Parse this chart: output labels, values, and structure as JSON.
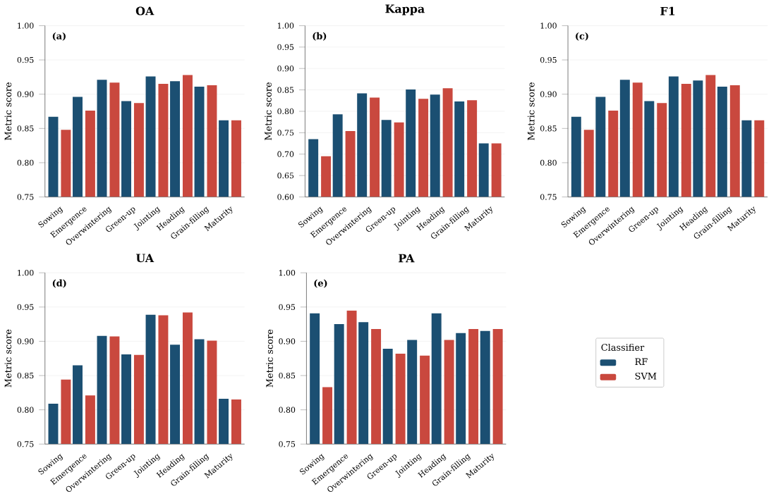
{
  "chart_data": [
    {
      "type": "bar",
      "title": "OA",
      "ylabel": "Metric score",
      "annotations": [
        "(a)"
      ],
      "categories": [
        "Sowing",
        "Emergence",
        "Overwintering",
        "Green-up",
        "Jointing",
        "Heading",
        "Grain-filling",
        "Maturity"
      ],
      "ylim": [
        0.75,
        1.0
      ],
      "yticks": [
        0.75,
        {
          "value": 0.8,
          "label": "0.80"
        },
        0.85,
        {
          "value": 0.9,
          "label": "0.90"
        },
        0.95,
        {
          "value": 1.0,
          "label": "1.00"
        }
      ],
      "grid": "y",
      "series": [
        {
          "color": "#1b4f72",
          "values": [
            0.867,
            0.896,
            0.921,
            0.89,
            0.926,
            0.919,
            0.911,
            0.862
          ]
        },
        {
          "color": "#c9483e",
          "values": [
            0.848,
            0.876,
            0.917,
            0.887,
            0.915,
            0.928,
            0.913,
            0.862
          ]
        }
      ]
    },
    {
      "type": "bar",
      "title": "Kappa",
      "ylabel": "Metric score",
      "annotations": [
        "(b)"
      ],
      "categories": [
        "Sowing",
        "Emergence",
        "Overwintering",
        "Green-up",
        "Jointing",
        "Heading",
        "Grain-filling",
        "Maturity"
      ],
      "ylim": [
        0.6,
        1.0
      ],
      "yticks": [
        {
          "value": 0.6,
          "label": "0.60"
        },
        0.65,
        {
          "value": 0.7,
          "label": "0.70"
        },
        0.75,
        {
          "value": 0.8,
          "label": "0.80"
        },
        0.85,
        {
          "value": 0.9,
          "label": "0.90"
        },
        0.95,
        {
          "value": 1.0,
          "label": "1.00"
        }
      ],
      "grid": "y",
      "series": [
        {
          "color": "#1b4f72",
          "values": [
            0.735,
            0.793,
            0.842,
            0.78,
            0.851,
            0.839,
            0.823,
            0.725
          ]
        },
        {
          "color": "#c9483e",
          "values": [
            0.695,
            0.754,
            0.832,
            0.774,
            0.829,
            0.854,
            0.826,
            0.725
          ]
        }
      ]
    },
    {
      "type": "bar",
      "title": "F1",
      "ylabel": "Metric score",
      "annotations": [
        "(c)"
      ],
      "categories": [
        "Sowing",
        "Emergence",
        "Overwintering",
        "Green-up",
        "Jointing",
        "Heading",
        "Grain-filling",
        "Maturity"
      ],
      "ylim": [
        0.75,
        1.0
      ],
      "yticks": [
        0.75,
        {
          "value": 0.8,
          "label": "0.80"
        },
        0.85,
        {
          "value": 0.9,
          "label": "0.90"
        },
        0.95,
        {
          "value": 1.0,
          "label": "1.00"
        }
      ],
      "grid": "y",
      "series": [
        {
          "color": "#1b4f72",
          "values": [
            0.867,
            0.896,
            0.921,
            0.89,
            0.926,
            0.92,
            0.911,
            0.862
          ]
        },
        {
          "color": "#c9483e",
          "values": [
            0.848,
            0.876,
            0.917,
            0.887,
            0.915,
            0.928,
            0.913,
            0.862
          ]
        }
      ]
    },
    {
      "type": "bar",
      "title": "UA",
      "ylabel": "Metric score",
      "annotations": [
        "(d)"
      ],
      "categories": [
        "Sowing",
        "Emergence",
        "Overwintering",
        "Green-up",
        "Jointing",
        "Heading",
        "Grain-filling",
        "Maturity"
      ],
      "ylim": [
        0.75,
        1.0
      ],
      "yticks": [
        0.75,
        {
          "value": 0.8,
          "label": "0.80"
        },
        0.85,
        {
          "value": 0.9,
          "label": "0.90"
        },
        0.95,
        {
          "value": 1.0,
          "label": "1.00"
        }
      ],
      "grid": "y",
      "series": [
        {
          "color": "#1b4f72",
          "values": [
            0.809,
            0.865,
            0.908,
            0.881,
            0.939,
            0.895,
            0.903,
            0.816
          ]
        },
        {
          "color": "#c9483e",
          "values": [
            0.844,
            0.821,
            0.907,
            0.88,
            0.938,
            0.942,
            0.901,
            0.815
          ]
        }
      ]
    },
    {
      "type": "bar",
      "title": "PA",
      "ylabel": "Metric score",
      "annotations": [
        "(e)"
      ],
      "categories": [
        "Sowing",
        "Emergence",
        "Overwintering",
        "Green-up",
        "Jointing",
        "Heading",
        "Grain-filling",
        "Maturity"
      ],
      "ylim": [
        0.75,
        1.0
      ],
      "yticks": [
        0.75,
        {
          "value": 0.8,
          "label": "0.80"
        },
        0.85,
        {
          "value": 0.9,
          "label": "0.90"
        },
        0.95,
        {
          "value": 1.0,
          "label": "1.00"
        }
      ],
      "grid": "y",
      "legend": "right",
      "legend_title": "Classifier",
      "series": [
        {
          "name": "RF",
          "color": "#1b4f72",
          "values": [
            0.941,
            0.925,
            0.928,
            0.889,
            0.902,
            0.941,
            0.912,
            0.915
          ]
        },
        {
          "name": "SVM",
          "color": "#c9483e",
          "values": [
            0.833,
            0.945,
            0.918,
            0.882,
            0.879,
            0.902,
            0.918,
            0.918
          ]
        }
      ]
    }
  ]
}
